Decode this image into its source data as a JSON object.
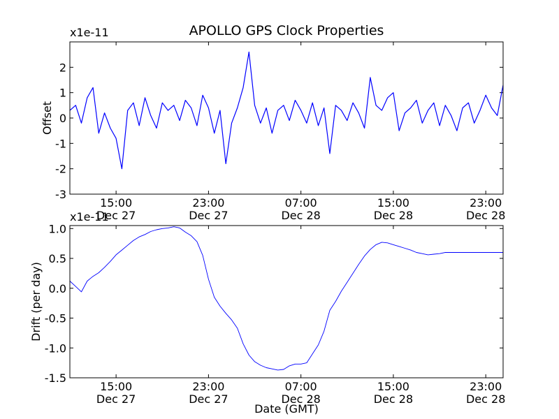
{
  "chart_data": [
    {
      "type": "line",
      "title": "APOLLO GPS Clock Properties",
      "xlabel": "",
      "ylabel": "Offset",
      "y_multiplier": "x1e-11",
      "ylim": [
        -3,
        3
      ],
      "yticks": [
        -3,
        -2,
        -1,
        0,
        1,
        2
      ],
      "ytick_labels": [
        "-3",
        "-2",
        "-1",
        "0",
        "1",
        "2"
      ],
      "xlim_hours": [
        11.0,
        48.5
      ],
      "xticks": [
        {
          "t": 15,
          "time": "15:00",
          "date": "Dec 27"
        },
        {
          "t": 23,
          "time": "23:00",
          "date": "Dec 27"
        },
        {
          "t": 31,
          "time": "07:00",
          "date": "Dec 28"
        },
        {
          "t": 39,
          "time": "15:00",
          "date": "Dec 28"
        },
        {
          "t": 47,
          "time": "23:00",
          "date": "Dec 28"
        }
      ],
      "grid": false,
      "color": "#0000ff",
      "series": [
        {
          "x": [
            11.0,
            11.5,
            12.0,
            12.5,
            13.0,
            13.5,
            14.0,
            14.5,
            15.0,
            15.5,
            16.0,
            16.5,
            17.0,
            17.5,
            18.0,
            18.5,
            19.0,
            19.5,
            20.0,
            20.5,
            21.0,
            21.5,
            22.0,
            22.5,
            23.0,
            23.5,
            24.0,
            24.5,
            25.0,
            25.5,
            26.0,
            26.5,
            27.0,
            27.5,
            28.0,
            28.5,
            29.0,
            29.5,
            30.0,
            30.5,
            31.0,
            31.5,
            32.0,
            32.5,
            33.0,
            33.5,
            34.0,
            34.5,
            35.0,
            35.5,
            36.0,
            36.5,
            37.0,
            37.5,
            38.0,
            38.5,
            39.0,
            39.5,
            40.0,
            40.5,
            41.0,
            41.5,
            42.0,
            42.5,
            43.0,
            43.5,
            44.0,
            44.5,
            45.0,
            45.5,
            46.0,
            46.5,
            47.0,
            47.5,
            48.0,
            48.5
          ],
          "values": [
            0.3,
            0.5,
            -0.2,
            0.8,
            1.2,
            -0.6,
            0.2,
            -0.4,
            -0.8,
            -2.0,
            0.3,
            0.6,
            -0.3,
            0.8,
            0.1,
            -0.4,
            0.6,
            0.3,
            0.5,
            -0.1,
            0.7,
            0.4,
            -0.3,
            0.9,
            0.4,
            -0.6,
            0.3,
            -1.8,
            -0.2,
            0.4,
            1.2,
            2.6,
            0.5,
            -0.2,
            0.4,
            -0.6,
            0.3,
            0.5,
            -0.1,
            0.7,
            0.3,
            -0.2,
            0.6,
            -0.3,
            0.4,
            -1.4,
            0.5,
            0.3,
            -0.1,
            0.6,
            0.2,
            -0.4,
            1.6,
            0.5,
            0.3,
            0.8,
            1.0,
            -0.5,
            0.2,
            0.4,
            0.7,
            -0.2,
            0.3,
            0.6,
            -0.3,
            0.5,
            0.1,
            -0.5,
            0.4,
            0.6,
            -0.2,
            0.3,
            0.9,
            0.4,
            0.1,
            1.3
          ]
        }
      ]
    },
    {
      "type": "line",
      "title": "",
      "xlabel": "Date (GMT)",
      "ylabel": "Drift (per day)",
      "y_multiplier": "x1e-11",
      "ylim": [
        -1.5,
        1.05
      ],
      "yticks": [
        -1.5,
        -1.0,
        -0.5,
        0.0,
        0.5,
        1.0
      ],
      "ytick_labels": [
        "-1.5",
        "-1.0",
        "-0.5",
        "0.0",
        "0.5",
        "1.0"
      ],
      "xlim_hours": [
        11.0,
        48.5
      ],
      "xticks": [
        {
          "t": 15,
          "time": "15:00",
          "date": "Dec 27"
        },
        {
          "t": 23,
          "time": "23:00",
          "date": "Dec 27"
        },
        {
          "t": 31,
          "time": "07:00",
          "date": "Dec 28"
        },
        {
          "t": 39,
          "time": "15:00",
          "date": "Dec 28"
        },
        {
          "t": 47,
          "time": "23:00",
          "date": "Dec 28"
        }
      ],
      "grid": false,
      "color": "#0000ff",
      "series": [
        {
          "x": [
            11.0,
            11.5,
            12.0,
            12.5,
            13.0,
            13.5,
            14.0,
            14.5,
            15.0,
            15.5,
            16.0,
            16.5,
            17.0,
            17.5,
            18.0,
            18.5,
            19.0,
            19.5,
            20.0,
            20.5,
            21.0,
            21.5,
            22.0,
            22.5,
            23.0,
            23.5,
            24.0,
            24.5,
            25.0,
            25.5,
            26.0,
            26.5,
            27.0,
            27.5,
            28.0,
            28.5,
            29.0,
            29.5,
            30.0,
            30.5,
            31.0,
            31.5,
            32.0,
            32.5,
            33.0,
            33.5,
            34.0,
            34.5,
            35.0,
            35.5,
            36.0,
            36.5,
            37.0,
            37.5,
            38.0,
            38.5,
            39.0,
            39.5,
            40.0,
            40.5,
            41.0,
            41.5,
            42.0,
            42.5,
            43.0,
            43.5,
            44.0,
            44.5,
            45.0,
            45.5,
            46.0,
            46.5,
            47.0,
            47.5,
            48.0,
            48.5
          ],
          "values": [
            0.12,
            0.03,
            -0.06,
            0.12,
            0.2,
            0.26,
            0.35,
            0.45,
            0.56,
            0.64,
            0.72,
            0.8,
            0.86,
            0.9,
            0.95,
            0.98,
            1.0,
            1.01,
            1.03,
            1.01,
            0.94,
            0.88,
            0.78,
            0.55,
            0.15,
            -0.15,
            -0.3,
            -0.42,
            -0.53,
            -0.67,
            -0.93,
            -1.12,
            -1.23,
            -1.29,
            -1.33,
            -1.35,
            -1.37,
            -1.36,
            -1.3,
            -1.27,
            -1.27,
            -1.25,
            -1.1,
            -0.95,
            -0.72,
            -0.37,
            -0.22,
            -0.05,
            0.1,
            0.25,
            0.4,
            0.54,
            0.65,
            0.73,
            0.77,
            0.76,
            0.73,
            0.7,
            0.67,
            0.64,
            0.6,
            0.58,
            0.56,
            0.57,
            0.58,
            0.6,
            0.6,
            0.6,
            0.6,
            0.6,
            0.6,
            0.6,
            0.6,
            0.6,
            0.6,
            0.6
          ]
        }
      ]
    }
  ]
}
